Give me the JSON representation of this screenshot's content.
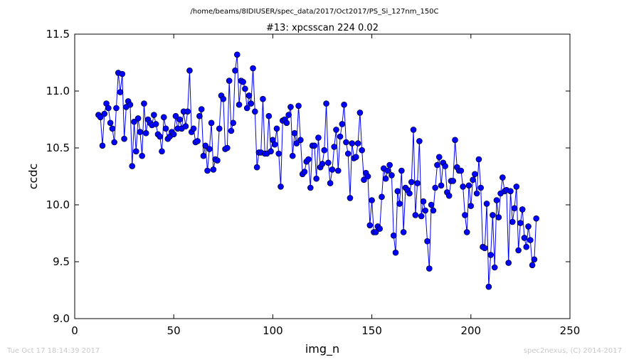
{
  "footer": {
    "timestamp": "Tue Oct 17 18:14:39 2017",
    "credit": "spec2nexus, (C) 2014-2017"
  },
  "chart_data": {
    "type": "line",
    "suptitle": "/home/beams/8IDIUSER/spec_data/2017/Oct2017/PS_Si_127nm_150C",
    "title": "#13: xpcsscan 224 0.02",
    "xlabel": "img_n",
    "ylabel": "ccdc",
    "xlim": [
      0,
      250
    ],
    "ylim": [
      9.0,
      11.5
    ],
    "xticks": [
      0,
      50,
      100,
      150,
      200,
      250
    ],
    "yticks": [
      9.0,
      9.5,
      10.0,
      10.5,
      11.0,
      11.5
    ],
    "grid": false,
    "marker": "circle",
    "color": "#0000ff",
    "series": [
      {
        "x_start": 12,
        "x_step": 1,
        "values": [
          10.79,
          10.77,
          10.52,
          10.8,
          10.89,
          10.85,
          10.72,
          10.67,
          10.55,
          10.85,
          11.16,
          10.99,
          11.15,
          10.58,
          10.86,
          10.91,
          10.88,
          10.34,
          10.73,
          10.47,
          10.76,
          10.64,
          10.43,
          10.89,
          10.63,
          10.75,
          10.72,
          10.7,
          10.79,
          10.71,
          10.62,
          10.6,
          10.47,
          10.77,
          10.67,
          10.58,
          10.6,
          10.64,
          10.62,
          10.78,
          10.67,
          10.75,
          10.67,
          10.82,
          10.69,
          10.82,
          11.18,
          10.64,
          10.67,
          10.55,
          10.56,
          10.78,
          10.84,
          10.43,
          10.52,
          10.3,
          10.49,
          10.72,
          10.31,
          10.4,
          10.39,
          10.67,
          10.96,
          10.93,
          10.49,
          10.5,
          11.09,
          10.65,
          10.72,
          11.18,
          11.32,
          10.88,
          11.09,
          11.08,
          11.02,
          10.85,
          10.96,
          10.89,
          11.2,
          10.82,
          10.33,
          10.46,
          10.46,
          10.93,
          10.45,
          10.45,
          10.78,
          10.47,
          10.57,
          10.53,
          10.67,
          10.45,
          10.16,
          10.74,
          10.75,
          10.72,
          10.79,
          10.86,
          10.43,
          10.63,
          10.54,
          10.87,
          10.57,
          10.27,
          10.29,
          10.38,
          10.4,
          10.15,
          10.52,
          10.52,
          10.23,
          10.59,
          10.33,
          10.36,
          10.48,
          10.89,
          10.37,
          10.19,
          10.31,
          10.51,
          10.66,
          10.3,
          10.6,
          10.71,
          10.88,
          10.55,
          10.45,
          10.06,
          10.54,
          10.41,
          10.42,
          10.54,
          10.81,
          10.48,
          10.22,
          10.28,
          10.25,
          9.82,
          10.04,
          9.76,
          9.76,
          9.81,
          9.79,
          10.07,
          10.32,
          10.23,
          10.3,
          10.35,
          10.26,
          9.73,
          9.58,
          10.12,
          10.01,
          10.3,
          9.76,
          10.15,
          10.13,
          10.1,
          10.2,
          10.66,
          9.91,
          10.19,
          10.56,
          9.9,
          10.03,
          9.95,
          9.68,
          9.44,
          10.0,
          9.95,
          10.15,
          10.35,
          10.42,
          10.17,
          10.37,
          10.34,
          10.11,
          10.08,
          10.21,
          10.21,
          10.57,
          10.33,
          10.3,
          10.3,
          10.16,
          9.91,
          9.76,
          10.17,
          9.99,
          10.22,
          10.27,
          10.1,
          10.4,
          10.15,
          9.63,
          9.62,
          10.01,
          9.28,
          9.56,
          9.91,
          9.45,
          10.04,
          9.89,
          10.1,
          10.24,
          10.12,
          10.13,
          9.49,
          10.12,
          9.85,
          9.97,
          10.16,
          9.6,
          9.84,
          9.96,
          9.71,
          9.63,
          9.81,
          9.69,
          9.47,
          9.52,
          9.88
        ]
      }
    ]
  }
}
